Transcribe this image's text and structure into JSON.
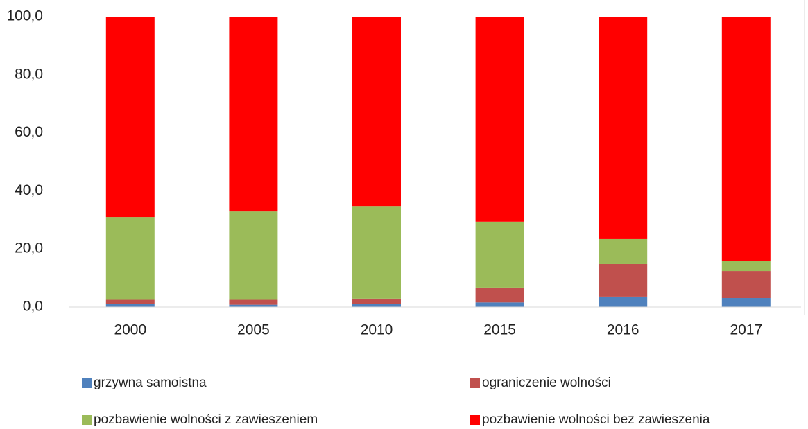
{
  "chart_data": {
    "type": "stacked_bar",
    "categories": [
      "2000",
      "2005",
      "2010",
      "2015",
      "2016",
      "2017"
    ],
    "series": [
      {
        "name": "grzywna samoistna",
        "color": "#4f81bd",
        "values": [
          1.0,
          0.8,
          1.0,
          1.6,
          3.6,
          3.1
        ]
      },
      {
        "name": "ograniczenie wolności",
        "color": "#c0504d",
        "values": [
          1.5,
          1.7,
          1.9,
          5.1,
          11.2,
          9.3
        ]
      },
      {
        "name": "pozbawienie wolności z zawieszeniem",
        "color": "#9bbb59",
        "values": [
          28.5,
          30.4,
          31.9,
          22.7,
          8.6,
          3.4
        ]
      },
      {
        "name": "pozbawienie wolności bez zawieszenia",
        "color": "#ff0000",
        "values": [
          69.0,
          67.1,
          65.2,
          70.6,
          76.6,
          84.2
        ]
      }
    ],
    "ylim": [
      0,
      100
    ],
    "yticks": [
      {
        "value": 0,
        "label": "0,0"
      },
      {
        "value": 20,
        "label": "20,0"
      },
      {
        "value": 40,
        "label": "40,0"
      },
      {
        "value": 60,
        "label": "60,0"
      },
      {
        "value": 80,
        "label": "80,0"
      },
      {
        "value": 100,
        "label": "100,0"
      }
    ],
    "grid": false,
    "legend": "bottom"
  }
}
